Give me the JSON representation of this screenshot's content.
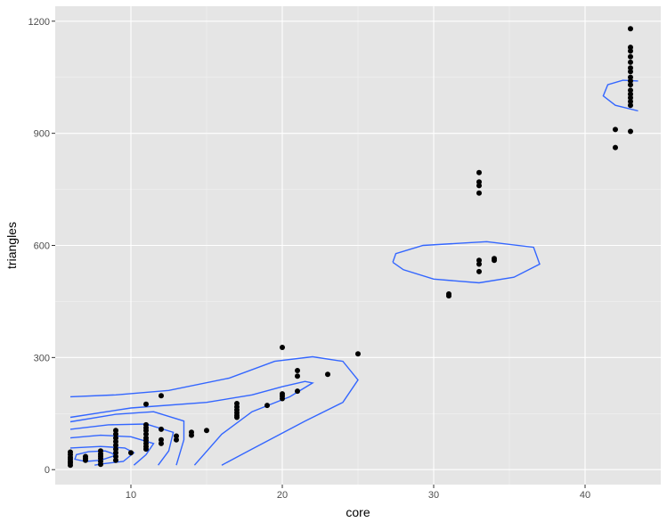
{
  "chart_data": {
    "type": "scatter",
    "xlabel": "core",
    "ylabel": "triangles",
    "xlim": [
      5,
      45
    ],
    "ylim": [
      -40,
      1240
    ],
    "x_ticks": [
      10,
      20,
      30,
      40
    ],
    "y_ticks": [
      0,
      300,
      600,
      900,
      1200
    ],
    "x_tick_labels": [
      "10",
      "20",
      "30",
      "40"
    ],
    "y_tick_labels": [
      "0",
      "300",
      "600",
      "900",
      "1200"
    ],
    "grid": true,
    "panel_color": "#e5e5e5",
    "point_color": "#000000",
    "contour_color": "#3366ff",
    "points": [
      [
        6,
        12
      ],
      [
        6,
        18
      ],
      [
        6,
        22
      ],
      [
        6,
        28
      ],
      [
        6,
        33
      ],
      [
        6,
        40
      ],
      [
        6,
        47
      ],
      [
        7,
        25
      ],
      [
        7,
        30
      ],
      [
        7,
        35
      ],
      [
        8,
        14
      ],
      [
        8,
        22
      ],
      [
        8,
        30
      ],
      [
        8,
        36
      ],
      [
        8,
        42
      ],
      [
        8,
        50
      ],
      [
        9,
        25
      ],
      [
        9,
        35
      ],
      [
        9,
        45
      ],
      [
        9,
        55
      ],
      [
        9,
        65
      ],
      [
        9,
        75
      ],
      [
        9,
        85
      ],
      [
        9,
        95
      ],
      [
        9,
        105
      ],
      [
        10,
        45
      ],
      [
        11,
        55
      ],
      [
        11,
        62
      ],
      [
        11,
        70
      ],
      [
        11,
        78
      ],
      [
        11,
        85
      ],
      [
        11,
        95
      ],
      [
        11,
        105
      ],
      [
        11,
        112
      ],
      [
        11,
        120
      ],
      [
        11,
        175
      ],
      [
        12,
        70
      ],
      [
        12,
        80
      ],
      [
        12,
        108
      ],
      [
        12,
        198
      ],
      [
        13,
        80
      ],
      [
        13,
        90
      ],
      [
        14,
        92
      ],
      [
        14,
        100
      ],
      [
        15,
        105
      ],
      [
        17,
        140
      ],
      [
        17,
        145
      ],
      [
        17,
        152
      ],
      [
        17,
        160
      ],
      [
        17,
        168
      ],
      [
        17,
        177
      ],
      [
        19,
        172
      ],
      [
        20,
        190
      ],
      [
        20,
        197
      ],
      [
        20,
        203
      ],
      [
        20,
        327
      ],
      [
        21,
        210
      ],
      [
        21,
        250
      ],
      [
        21,
        265
      ],
      [
        23,
        255
      ],
      [
        25,
        310
      ],
      [
        31,
        465
      ],
      [
        31,
        470
      ],
      [
        33,
        530
      ],
      [
        33,
        550
      ],
      [
        33,
        560
      ],
      [
        33,
        740
      ],
      [
        33,
        760
      ],
      [
        33,
        770
      ],
      [
        33,
        795
      ],
      [
        34,
        560
      ],
      [
        34,
        565
      ],
      [
        42,
        862
      ],
      [
        42,
        910
      ],
      [
        43,
        905
      ],
      [
        43,
        975
      ],
      [
        43,
        985
      ],
      [
        43,
        995
      ],
      [
        43,
        1005
      ],
      [
        43,
        1015
      ],
      [
        43,
        1030
      ],
      [
        43,
        1040
      ],
      [
        43,
        1050
      ],
      [
        43,
        1065
      ],
      [
        43,
        1075
      ],
      [
        43,
        1090
      ],
      [
        43,
        1105
      ],
      [
        43,
        1120
      ],
      [
        43,
        1130
      ],
      [
        43,
        1180
      ]
    ],
    "density_contours": [
      [
        [
          8.8,
          43
        ],
        [
          8.9,
          37
        ],
        [
          8.0,
          25
        ],
        [
          7.0,
          22
        ],
        [
          6.3,
          28
        ],
        [
          6.4,
          40
        ],
        [
          7.2,
          48
        ],
        [
          8.3,
          50
        ],
        [
          8.8,
          43
        ]
      ],
      [
        [
          6.0,
          58
        ],
        [
          8.0,
          62
        ],
        [
          9.6,
          58
        ],
        [
          10.2,
          45
        ],
        [
          9.5,
          22
        ],
        [
          8.0,
          15
        ],
        [
          7.6,
          12
        ]
      ],
      [
        [
          6.0,
          85
        ],
        [
          8.0,
          92
        ],
        [
          10.0,
          88
        ],
        [
          11.5,
          70
        ],
        [
          11.0,
          40
        ],
        [
          10.2,
          12
        ]
      ],
      [
        [
          6.0,
          108
        ],
        [
          8.5,
          120
        ],
        [
          11.0,
          122
        ],
        [
          12.8,
          100
        ],
        [
          12.5,
          50
        ],
        [
          11.8,
          12
        ]
      ],
      [
        [
          6.0,
          128
        ],
        [
          9.0,
          148
        ],
        [
          11.5,
          155
        ],
        [
          13.5,
          130
        ],
        [
          13.5,
          80
        ],
        [
          13.0,
          12
        ]
      ],
      [
        [
          6.0,
          140
        ],
        [
          10.0,
          165
        ],
        [
          15.0,
          180
        ],
        [
          18.0,
          200
        ],
        [
          20.0,
          222
        ],
        [
          21.5,
          236
        ],
        [
          22.0,
          232
        ],
        [
          20.5,
          195
        ],
        [
          18.0,
          155
        ],
        [
          16.0,
          95
        ],
        [
          14.2,
          12
        ]
      ],
      [
        [
          16.0,
          12
        ],
        [
          18.0,
          55
        ],
        [
          21.5,
          130
        ],
        [
          24.0,
          180
        ],
        [
          25.0,
          240
        ],
        [
          24.0,
          290
        ],
        [
          22.0,
          302
        ],
        [
          19.5,
          290
        ],
        [
          16.5,
          245
        ],
        [
          12.5,
          212
        ],
        [
          9.0,
          200
        ],
        [
          6.0,
          195
        ]
      ],
      [
        [
          27.3,
          555
        ],
        [
          27.5,
          578
        ],
        [
          29.3,
          600
        ],
        [
          33.5,
          610
        ],
        [
          36.6,
          595
        ],
        [
          37.0,
          550
        ],
        [
          35.3,
          515
        ],
        [
          33.0,
          500
        ],
        [
          30.0,
          510
        ],
        [
          28.0,
          535
        ],
        [
          27.3,
          555
        ]
      ],
      [
        [
          43.5,
          1040
        ],
        [
          42.5,
          1042
        ],
        [
          41.5,
          1030
        ],
        [
          41.2,
          1000
        ],
        [
          42.0,
          975
        ],
        [
          43.5,
          960
        ]
      ]
    ]
  }
}
